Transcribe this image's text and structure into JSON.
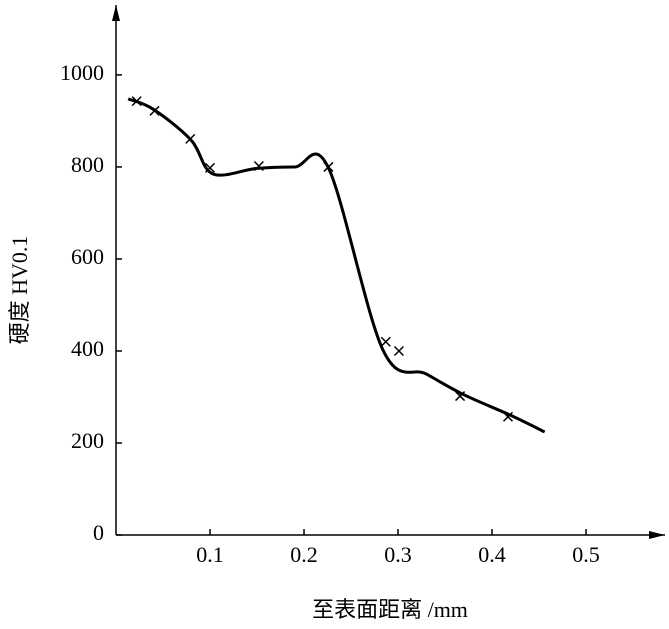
{
  "chart_data": {
    "type": "line",
    "x_label": "至表面距离 /mm",
    "y_label": "硬度 HV0.1",
    "xlim": [
      0,
      0.584
    ],
    "ylim": [
      0,
      1152
    ],
    "xticks": [
      0.1,
      0.2,
      0.3,
      0.4,
      0.5
    ],
    "yticks": [
      0,
      200,
      400,
      600,
      800,
      1000
    ],
    "series": [
      {
        "style": "line",
        "color": "#000000",
        "x": [
          0.013,
          0.04,
          0.08,
          0.103,
          0.15,
          0.19,
          0.226,
          0.284,
          0.33,
          0.37,
          0.42,
          0.456
        ],
        "values": [
          948,
          925,
          858,
          785,
          797,
          800,
          798,
          402,
          350,
          305,
          260,
          224
        ]
      },
      {
        "style": "marker",
        "color": "#000000",
        "x": [
          0.022,
          0.041,
          0.079,
          0.1,
          0.152,
          0.226,
          0.287,
          0.301,
          0.366,
          0.417
        ],
        "values": [
          943,
          922,
          861,
          798,
          802,
          800,
          420,
          400,
          302,
          257
        ]
      }
    ]
  }
}
